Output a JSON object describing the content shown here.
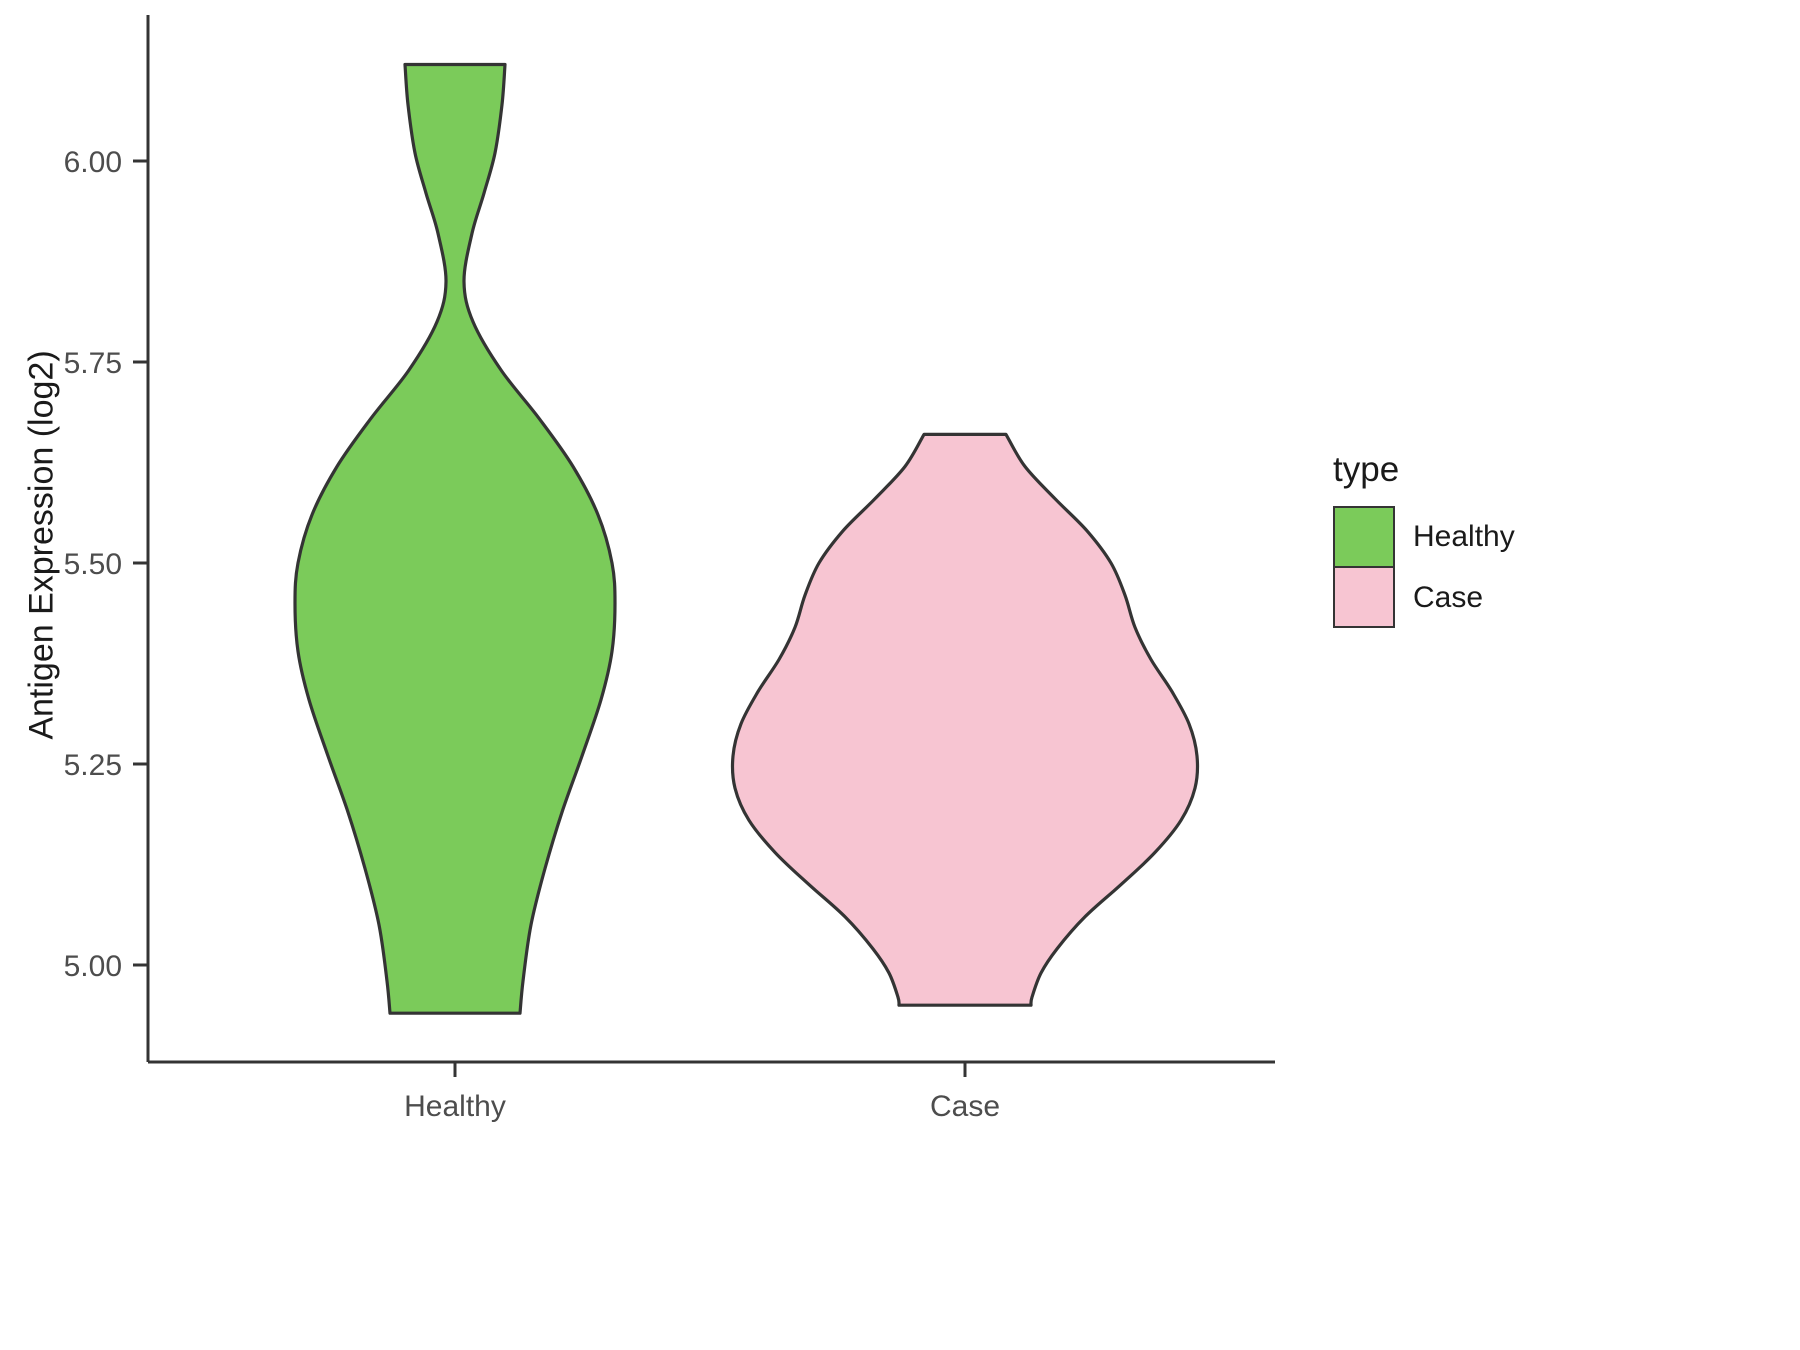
{
  "chart_data": {
    "type": "violin",
    "title": "",
    "xlabel": "",
    "ylabel": "Antigen Expression (log2)",
    "categories": [
      "Healthy",
      "Case"
    ],
    "y_ticks": [
      5.0,
      5.25,
      5.5,
      5.75,
      6.0
    ],
    "y_tick_labels": [
      "5.00",
      "5.25",
      "5.50",
      "5.75",
      "6.00"
    ],
    "ylim": [
      4.88,
      6.18
    ],
    "grid": "off",
    "outline_color": "#343434",
    "legend": {
      "title": "type",
      "position": "right",
      "entries": [
        {
          "label": "Healthy",
          "color": "#7BCB5A"
        },
        {
          "label": "Case",
          "color": "#F7C5D2"
        }
      ]
    },
    "series": [
      {
        "name": "Healthy",
        "color": "#7BCB5A",
        "profile_note": "pairs of [y_value, half_width_px]; truncated flat at top 6.12 and bottom 4.94 with a pinch near 5.85 and widest region near 5.45",
        "profile": [
          [
            6.12,
            50
          ],
          [
            6.07,
            47
          ],
          [
            6.01,
            40
          ],
          [
            5.96,
            29
          ],
          [
            5.91,
            17
          ],
          [
            5.85,
            9
          ],
          [
            5.8,
            18
          ],
          [
            5.74,
            46
          ],
          [
            5.68,
            84
          ],
          [
            5.62,
            118
          ],
          [
            5.56,
            143
          ],
          [
            5.5,
            157
          ],
          [
            5.45,
            160
          ],
          [
            5.39,
            157
          ],
          [
            5.33,
            146
          ],
          [
            5.26,
            127
          ],
          [
            5.19,
            107
          ],
          [
            5.12,
            90
          ],
          [
            5.05,
            76
          ],
          [
            4.98,
            68
          ],
          [
            4.94,
            65
          ]
        ]
      },
      {
        "name": "Case",
        "color": "#F7C5D2",
        "profile_note": "pairs of [y_value, half_width_px]; truncated flat at top 5.66 and bottom 4.95, widest near 5.26",
        "profile": [
          [
            5.66,
            41
          ],
          [
            5.62,
            60
          ],
          [
            5.58,
            90
          ],
          [
            5.54,
            122
          ],
          [
            5.5,
            146
          ],
          [
            5.46,
            160
          ],
          [
            5.42,
            170
          ],
          [
            5.38,
            186
          ],
          [
            5.34,
            207
          ],
          [
            5.3,
            224
          ],
          [
            5.26,
            232
          ],
          [
            5.22,
            230
          ],
          [
            5.18,
            216
          ],
          [
            5.14,
            190
          ],
          [
            5.1,
            156
          ],
          [
            5.06,
            120
          ],
          [
            5.02,
            92
          ],
          [
            4.99,
            76
          ],
          [
            4.96,
            67
          ],
          [
            4.95,
            66
          ]
        ]
      }
    ]
  }
}
